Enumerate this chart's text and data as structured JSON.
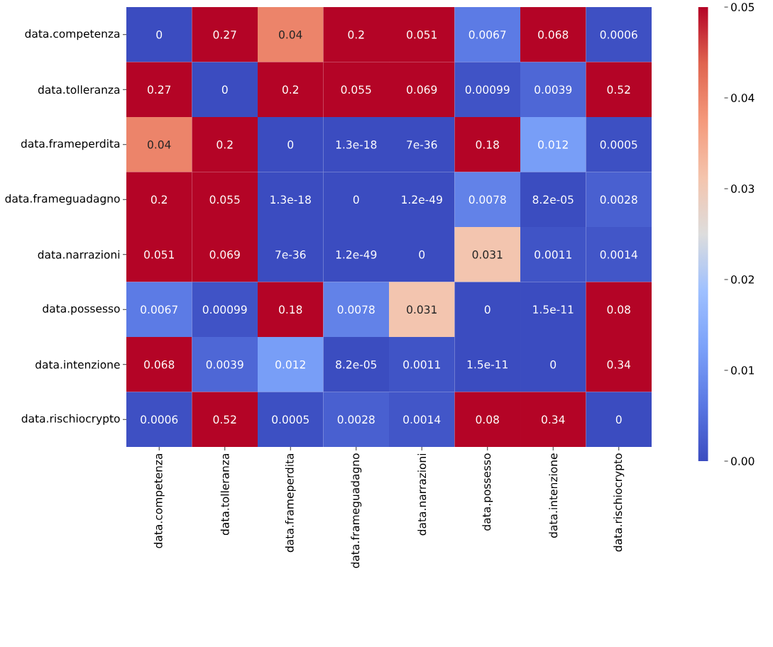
{
  "chart_data": {
    "type": "heatmap",
    "categories": [
      "data.competenza",
      "data.tolleranza",
      "data.frameperdita",
      "data.frameguadagno",
      "data.narrazioni",
      "data.possesso",
      "data.intenzione",
      "data.rischiocrypto"
    ],
    "y_categories": [
      "data.competenza",
      "data.tolleranza",
      "data.frameperdita",
      "data.frameguadagno",
      "data.narrazioni",
      "data.possesso",
      "data.intenzione",
      "data.rischiocrypto"
    ],
    "cells": [
      [
        0,
        0.27,
        0.04,
        0.2,
        0.051,
        0.0067,
        0.068,
        0.0006
      ],
      [
        0.27,
        0,
        0.2,
        0.055,
        0.069,
        0.00099,
        0.0039,
        0.52
      ],
      [
        0.04,
        0.2,
        0,
        1.3e-18,
        7e-36,
        0.18,
        0.012,
        0.0005
      ],
      [
        0.2,
        0.055,
        1.3e-18,
        0,
        1.2e-49,
        0.0078,
        8.2e-05,
        0.0028
      ],
      [
        0.051,
        0.069,
        7e-36,
        1.2e-49,
        0,
        0.031,
        0.0011,
        0.0014
      ],
      [
        0.0067,
        0.00099,
        0.18,
        0.0078,
        0.031,
        0,
        1.5e-11,
        0.08
      ],
      [
        0.068,
        0.0039,
        0.012,
        8.2e-05,
        0.0011,
        1.5e-11,
        0,
        0.34
      ],
      [
        0.0006,
        0.52,
        0.0005,
        0.0028,
        0.0014,
        0.08,
        0.34,
        0
      ]
    ],
    "data_labels": true,
    "clim": [
      0,
      0.05
    ],
    "cticks": [
      {
        "value": 0,
        "label": "0.00"
      },
      0.01,
      0.02,
      0.03,
      0.04,
      0.05
    ]
  }
}
